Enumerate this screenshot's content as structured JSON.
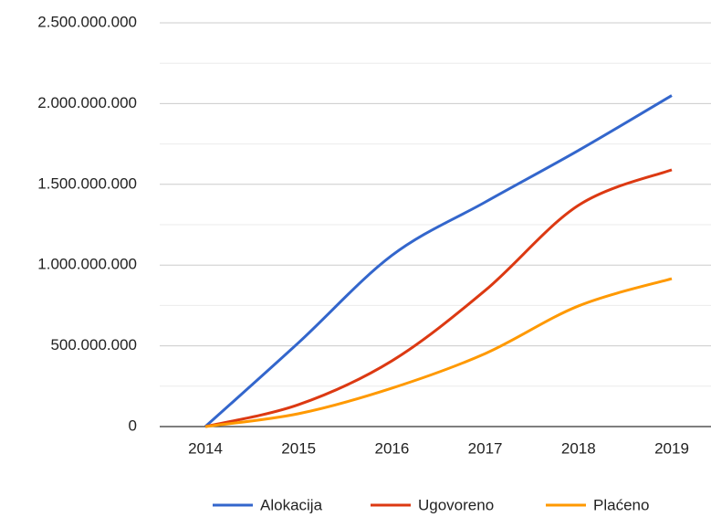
{
  "chart_data": {
    "type": "line",
    "categories": [
      "2014",
      "2015",
      "2016",
      "2017",
      "2018",
      "2019"
    ],
    "series": [
      {
        "name": "Alokacija",
        "color": "#3366cc",
        "values": [
          0,
          520000000,
          1060000000,
          1390000000,
          1710000000,
          2050000000
        ]
      },
      {
        "name": "Ugovoreno",
        "color": "#dc3912",
        "values": [
          0,
          136000000,
          407000000,
          843000000,
          1370000000,
          1590000000
        ]
      },
      {
        "name": "Plaćeno",
        "color": "#ff9900",
        "values": [
          0,
          80000000,
          238000000,
          452000000,
          747000000,
          916000000
        ]
      }
    ],
    "ylim": [
      0,
      2500000000
    ],
    "yticks": [
      0,
      {
        "value": 500000000,
        "label": "500.000.000"
      },
      {
        "value": 1000000000,
        "label": "1.000.000.000"
      },
      {
        "value": 1500000000,
        "label": "1.500.000.000"
      },
      {
        "value": 2000000000,
        "label": "2.000.000.000"
      },
      {
        "value": 2500000000,
        "label": "2.500.000.000"
      }
    ],
    "grid": true,
    "legend": "bottom",
    "smooth": true
  }
}
